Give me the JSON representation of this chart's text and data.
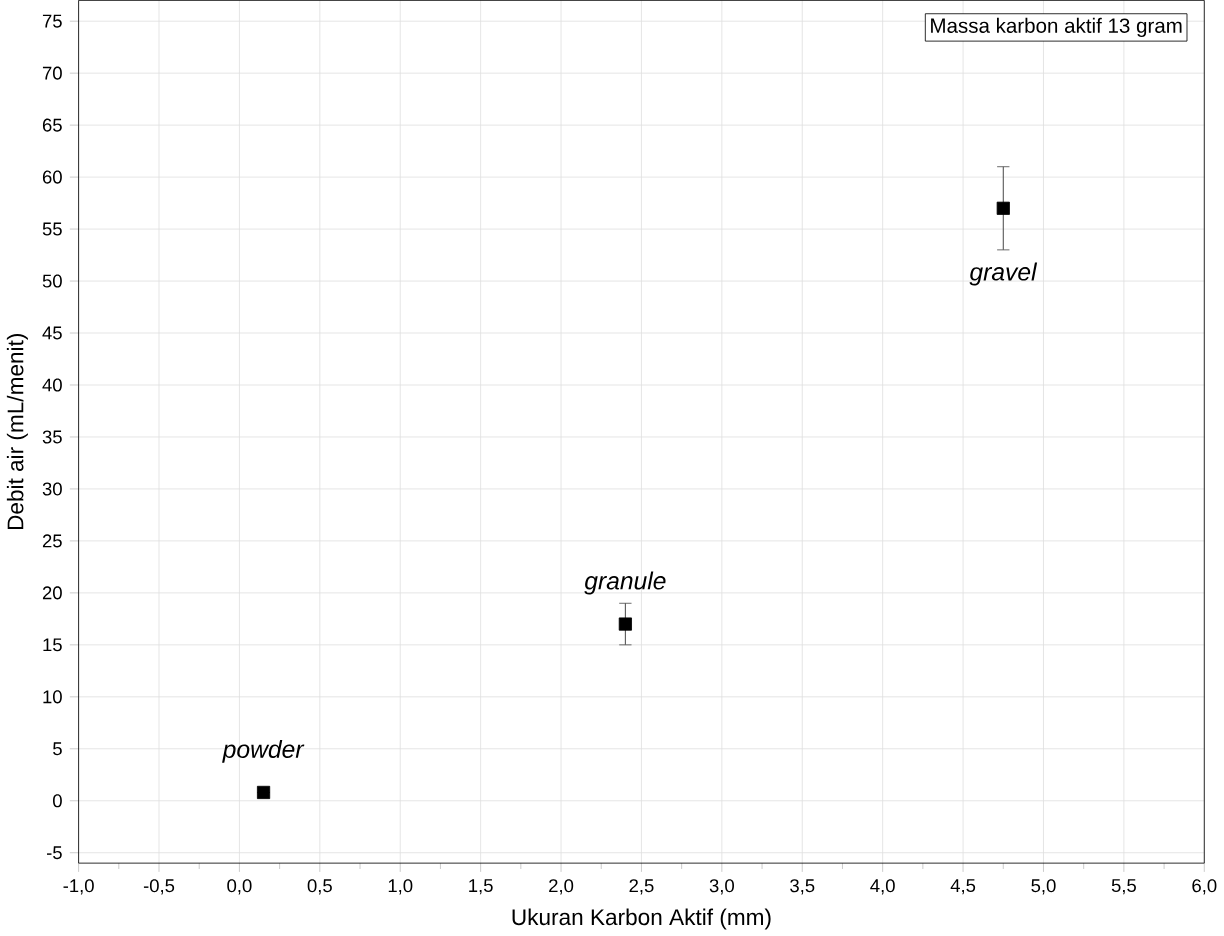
{
  "chart_data": {
    "type": "scatter",
    "xlabel": "Ukuran Karbon Aktif (mm)",
    "ylabel": "Debit air (mL/menit)",
    "x": [
      0.15,
      2.4,
      4.75
    ],
    "series": [
      {
        "color": "#000000",
        "values": [
          0.8,
          17,
          57
        ],
        "errors": [
          null,
          2,
          4
        ]
      }
    ],
    "marker": "square",
    "grid": true,
    "xlim": [
      -1,
      6
    ],
    "ylim": [
      -6,
      77
    ],
    "xticks": [
      {
        "value": -1,
        "label": "-1,0"
      },
      {
        "value": -0.5,
        "label": "-0,5"
      },
      {
        "value": 0,
        "label": "0,0"
      },
      {
        "value": 0.5,
        "label": "0,5"
      },
      {
        "value": 1,
        "label": "1,0"
      },
      {
        "value": 1.5,
        "label": "1,5"
      },
      {
        "value": 2,
        "label": "2,0"
      },
      {
        "value": 2.5,
        "label": "2,5"
      },
      {
        "value": 3,
        "label": "3,0"
      },
      {
        "value": 3.5,
        "label": "3,5"
      },
      {
        "value": 4,
        "label": "4,0"
      },
      {
        "value": 4.5,
        "label": "4,5"
      },
      {
        "value": 5,
        "label": "5,0"
      },
      {
        "value": 5.5,
        "label": "5,5"
      },
      {
        "value": 6,
        "label": "6,0"
      }
    ],
    "yticks": [
      -5,
      0,
      5,
      10,
      15,
      20,
      25,
      30,
      35,
      40,
      45,
      50,
      55,
      60,
      65,
      70,
      75
    ],
    "annotations": [
      "Massa karbon aktif 13 gram",
      {
        "text": "*powder*",
        "x": 0.15,
        "y": 0.8
      },
      {
        "text": "*granule*",
        "x": 2.4,
        "y": 17
      },
      {
        "text": "*gravel*",
        "x": 4.75,
        "y": 57
      }
    ]
  }
}
